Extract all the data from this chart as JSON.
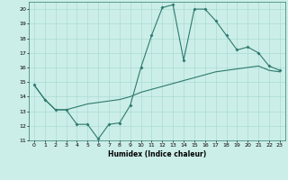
{
  "xlabel": "Humidex (Indice chaleur)",
  "ylabel": "",
  "bg_color": "#cceee8",
  "line_color": "#2d7a6e",
  "xlim": [
    -0.5,
    23.5
  ],
  "ylim": [
    11,
    20.5
  ],
  "yticks": [
    11,
    12,
    13,
    14,
    15,
    16,
    17,
    18,
    19,
    20
  ],
  "xticks": [
    0,
    1,
    2,
    3,
    4,
    5,
    6,
    7,
    8,
    9,
    10,
    11,
    12,
    13,
    14,
    15,
    16,
    17,
    18,
    19,
    20,
    21,
    22,
    23
  ],
  "line1_x": [
    0,
    1,
    2,
    3,
    4,
    5,
    6,
    7,
    8,
    9,
    10,
    11,
    12,
    13,
    14,
    15,
    16,
    17,
    18,
    19,
    20,
    21,
    22,
    23
  ],
  "line1_y": [
    14.8,
    13.8,
    13.1,
    13.1,
    12.1,
    12.1,
    11.1,
    12.1,
    12.2,
    13.4,
    16.0,
    18.2,
    20.1,
    20.3,
    16.5,
    20.0,
    20.0,
    19.2,
    18.2,
    17.2,
    17.4,
    17.0,
    16.1,
    15.8
  ],
  "line2_x": [
    0,
    1,
    2,
    3,
    4,
    5,
    6,
    7,
    8,
    9,
    10,
    11,
    12,
    13,
    14,
    15,
    16,
    17,
    18,
    19,
    20,
    21,
    22,
    23
  ],
  "line2_y": [
    14.8,
    13.8,
    13.1,
    13.1,
    13.3,
    13.5,
    13.6,
    13.7,
    13.8,
    14.0,
    14.3,
    14.5,
    14.7,
    14.9,
    15.1,
    15.3,
    15.5,
    15.7,
    15.8,
    15.9,
    16.0,
    16.1,
    15.8,
    15.7
  ]
}
